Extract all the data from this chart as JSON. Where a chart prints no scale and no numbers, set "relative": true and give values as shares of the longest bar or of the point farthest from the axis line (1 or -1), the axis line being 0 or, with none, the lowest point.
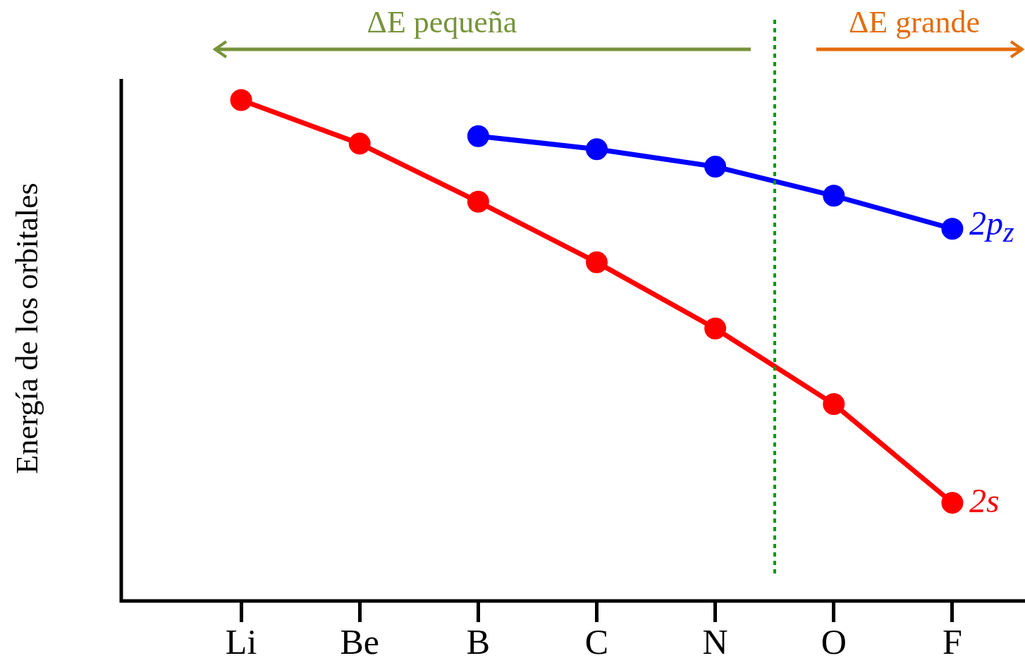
{
  "chart_data": {
    "type": "line",
    "ylabel": "Energía de los orbitales",
    "relative": true,
    "categories": [
      "Li",
      "Be",
      "B",
      "C",
      "N",
      "O",
      "F"
    ],
    "series": [
      {
        "name": "2s",
        "color": "#ff0000",
        "values": [
          1,
          0.913,
          0.797,
          0.676,
          0.544,
          0.393,
          0.196
        ]
      },
      {
        "name": "2p$_{z}$",
        "color": "#0000ff",
        "values": [
          null,
          null,
          0.928,
          0.902,
          0.867,
          0.809,
          0.743
        ]
      }
    ],
    "annotations": [
      "ΔE pequeña",
      "ΔE grande"
    ],
    "marker": "circle",
    "line_style": "solid",
    "grid": false,
    "legend": false
  }
}
